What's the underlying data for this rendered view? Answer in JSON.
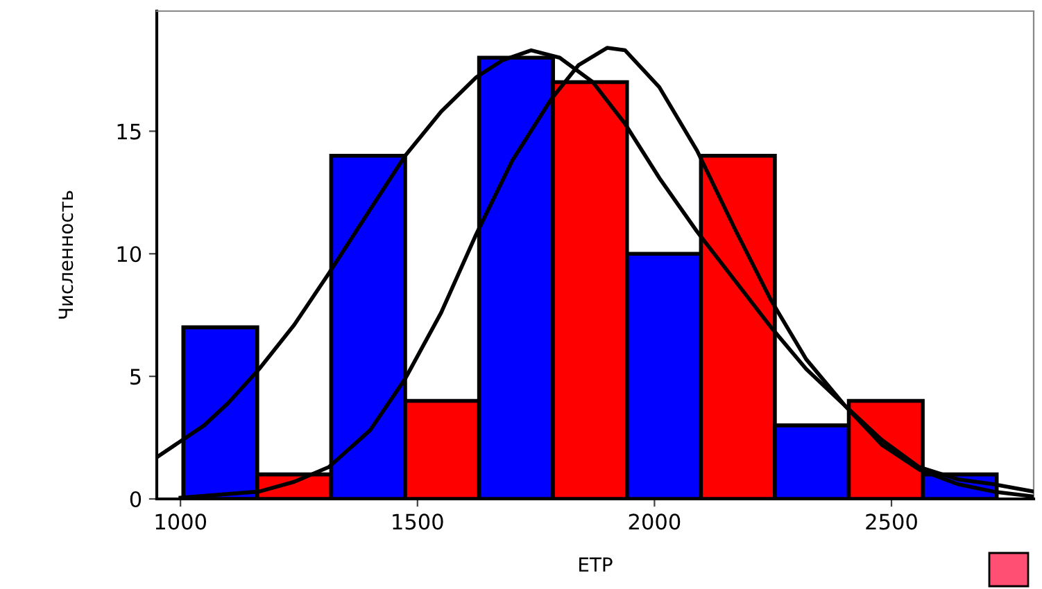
{
  "chart_data": {
    "type": "histogram",
    "xlabel": "ETP",
    "ylabel": "Численность",
    "bins": [
      1006,
      1162,
      1318,
      1474,
      1630,
      1786,
      1942,
      2098,
      2254,
      2410,
      2566,
      2722
    ],
    "values": [
      7,
      1,
      14,
      4,
      18,
      17,
      10,
      14,
      3,
      4,
      1
    ],
    "colors": [
      "#0000ff",
      "#ff0000",
      "#0000ff",
      "#ff0000",
      "#0000ff",
      "#ff0000",
      "#0000ff",
      "#ff0000",
      "#0000ff",
      "#ff0000",
      "#0000ff"
    ],
    "series": [
      {
        "type": "line",
        "color": "#000000",
        "x": [
          950,
          1050,
          1100,
          1166,
          1240,
          1313,
          1400,
          1474,
          1550,
          1624,
          1680,
          1740,
          1800,
          1870,
          1938,
          2010,
          2090,
          2170,
          2246,
          2320,
          2402,
          2480,
          2558,
          2640,
          2715,
          2800
        ],
        "values": [
          1.7,
          3.0,
          3.9,
          5.3,
          7.1,
          9.2,
          11.8,
          14,
          15.8,
          17.2,
          17.9,
          18.3,
          18.0,
          17.0,
          15.3,
          13.1,
          10.9,
          8.9,
          7.0,
          5.3,
          3.8,
          2.4,
          1.3,
          0.8,
          0.6,
          0.3
        ]
      },
      {
        "type": "line",
        "color": "#000000",
        "x": [
          1000,
          1166,
          1240,
          1313,
          1400,
          1474,
          1550,
          1624,
          1700,
          1782,
          1840,
          1900,
          1938,
          2010,
          2090,
          2170,
          2246,
          2320,
          2402,
          2480,
          2558,
          2640,
          2715,
          2800
        ],
        "values": [
          0.05,
          0.3,
          0.7,
          1.3,
          2.8,
          4.9,
          7.6,
          10.8,
          13.8,
          16.3,
          17.7,
          18.4,
          18.3,
          16.8,
          14.2,
          11.0,
          8.1,
          5.7,
          3.8,
          2.2,
          1.2,
          0.6,
          0.3,
          0.1
        ]
      }
    ],
    "xlim": [
      950,
      2800
    ],
    "ylim": [
      0,
      19.9
    ],
    "xticks": [
      1000,
      1500,
      2000,
      2500
    ],
    "yticks": [
      0,
      5,
      10,
      15
    ],
    "grid": false,
    "legend": false
  }
}
